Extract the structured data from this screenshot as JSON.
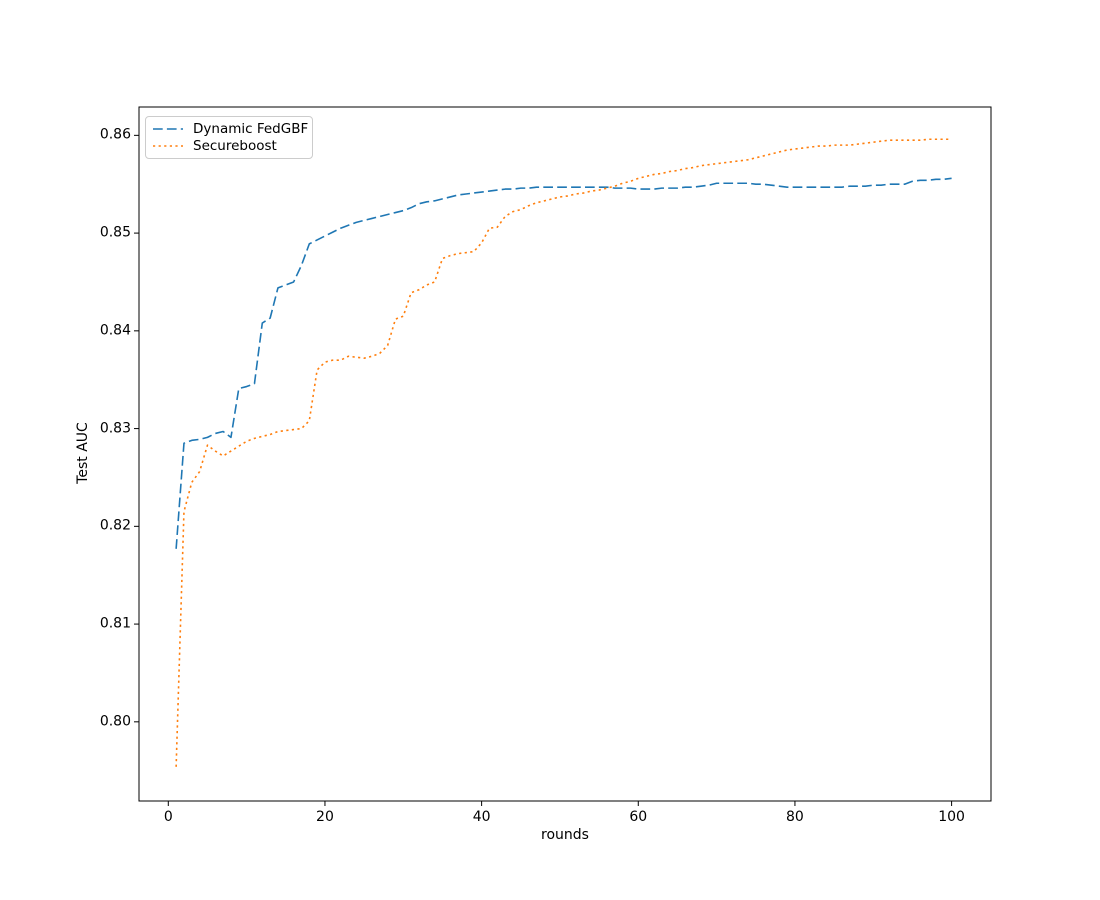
{
  "figure": {
    "background": "#ffffff",
    "text_color": "#000000",
    "spine_color": "#000000"
  },
  "chart_data": {
    "type": "line",
    "title": "",
    "xlabel": "rounds",
    "ylabel": "Test AUC",
    "grid": false,
    "legend": {
      "position": "upper left"
    },
    "axes": {
      "xlim": [
        -3.74,
        105.03
      ],
      "ylim": [
        0.7919,
        0.8629
      ],
      "x_ticks": [
        {
          "value": 0,
          "label": "0"
        },
        {
          "value": 20,
          "label": "20"
        },
        {
          "value": 40,
          "label": "40"
        },
        {
          "value": 60,
          "label": "60"
        },
        {
          "value": 80,
          "label": "80"
        },
        {
          "value": 100,
          "label": "100"
        }
      ],
      "y_ticks": [
        {
          "value": 0.8,
          "label": "0.80"
        },
        {
          "value": 0.81,
          "label": "0.81"
        },
        {
          "value": 0.82,
          "label": "0.82"
        },
        {
          "value": 0.83,
          "label": "0.83"
        },
        {
          "value": 0.84,
          "label": "0.84"
        },
        {
          "value": 0.85,
          "label": "0.85"
        },
        {
          "value": 0.86,
          "label": "0.86"
        }
      ]
    },
    "x": [
      1,
      2,
      3,
      4,
      5,
      6,
      7,
      8,
      9,
      10,
      11,
      12,
      13,
      14,
      15,
      16,
      17,
      18,
      19,
      20,
      21,
      22,
      23,
      24,
      25,
      26,
      27,
      28,
      29,
      30,
      31,
      32,
      33,
      34,
      35,
      36,
      37,
      38,
      39,
      40,
      41,
      42,
      43,
      44,
      45,
      46,
      47,
      48,
      49,
      50,
      51,
      52,
      53,
      54,
      55,
      56,
      57,
      58,
      59,
      60,
      61,
      62,
      63,
      64,
      65,
      66,
      67,
      68,
      69,
      70,
      71,
      72,
      73,
      74,
      75,
      76,
      77,
      78,
      79,
      80,
      81,
      82,
      83,
      84,
      85,
      86,
      87,
      88,
      89,
      90,
      91,
      92,
      93,
      94,
      95,
      96,
      97,
      98,
      99,
      100
    ],
    "series": [
      {
        "name": "Dynamic FedGBF",
        "color": "#1f77b4",
        "line_style": "dashed",
        "line_width": 1.6,
        "values": [
          0.8177,
          0.8285,
          0.8288,
          0.8289,
          0.8291,
          0.8295,
          0.8297,
          0.8291,
          0.8341,
          0.8343,
          0.8346,
          0.8408,
          0.8413,
          0.8444,
          0.8447,
          0.845,
          0.8467,
          0.8489,
          0.8493,
          0.8497,
          0.8501,
          0.8505,
          0.8508,
          0.8511,
          0.8513,
          0.8515,
          0.8517,
          0.8519,
          0.8521,
          0.8523,
          0.8526,
          0.853,
          0.8532,
          0.8533,
          0.8535,
          0.8537,
          0.8539,
          0.854,
          0.8541,
          0.8542,
          0.8543,
          0.8544,
          0.8545,
          0.8545,
          0.8546,
          0.8546,
          0.8547,
          0.8547,
          0.8547,
          0.8547,
          0.8547,
          0.8547,
          0.8547,
          0.8547,
          0.8547,
          0.8547,
          0.8546,
          0.8546,
          0.8546,
          0.8545,
          0.8545,
          0.8545,
          0.8546,
          0.8546,
          0.8546,
          0.8547,
          0.8547,
          0.8548,
          0.8549,
          0.8551,
          0.8551,
          0.8551,
          0.8551,
          0.8551,
          0.855,
          0.855,
          0.8549,
          0.8548,
          0.8547,
          0.8547,
          0.8547,
          0.8547,
          0.8547,
          0.8547,
          0.8547,
          0.8547,
          0.8548,
          0.8548,
          0.8548,
          0.8549,
          0.8549,
          0.855,
          0.855,
          0.855,
          0.8553,
          0.8554,
          0.8554,
          0.8555,
          0.8555,
          0.8556
        ]
      },
      {
        "name": "Secureboost",
        "color": "#ff7f0e",
        "line_style": "dotted",
        "line_width": 1.6,
        "values": [
          0.7954,
          0.8215,
          0.8245,
          0.8256,
          0.8283,
          0.8277,
          0.8272,
          0.8277,
          0.8282,
          0.8287,
          0.829,
          0.8292,
          0.8294,
          0.8297,
          0.8298,
          0.8299,
          0.83,
          0.8308,
          0.836,
          0.8368,
          0.837,
          0.837,
          0.8374,
          0.8373,
          0.8372,
          0.8374,
          0.8377,
          0.8385,
          0.8412,
          0.8415,
          0.8439,
          0.8442,
          0.8447,
          0.845,
          0.8474,
          0.8477,
          0.8479,
          0.848,
          0.8481,
          0.849,
          0.8505,
          0.8506,
          0.8517,
          0.8522,
          0.8524,
          0.8528,
          0.8531,
          0.8533,
          0.8535,
          0.8537,
          0.8538,
          0.854,
          0.8541,
          0.8543,
          0.8544,
          0.8546,
          0.8548,
          0.8551,
          0.8553,
          0.8556,
          0.8558,
          0.856,
          0.8561,
          0.8563,
          0.8564,
          0.8566,
          0.8567,
          0.8569,
          0.857,
          0.8571,
          0.8572,
          0.8573,
          0.8574,
          0.8575,
          0.8577,
          0.8579,
          0.8581,
          0.8583,
          0.8585,
          0.8586,
          0.8587,
          0.8588,
          0.8589,
          0.8589,
          0.859,
          0.859,
          0.859,
          0.8591,
          0.8592,
          0.8593,
          0.8594,
          0.8595,
          0.8595,
          0.8595,
          0.8595,
          0.8595,
          0.8596,
          0.8596,
          0.8596,
          0.8596
        ]
      }
    ]
  }
}
